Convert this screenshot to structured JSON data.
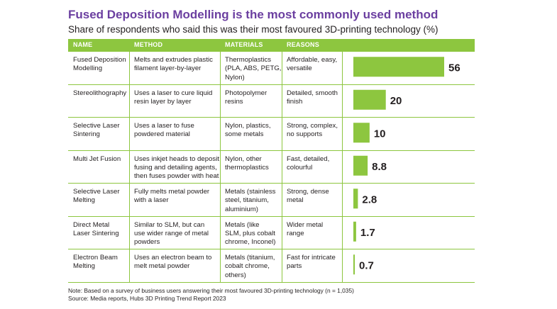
{
  "title": "Fused Deposition Modelling is the most commonly used method",
  "subtitle": "Share of respondents who said this was their most favoured 3D-printing technology (%)",
  "headers": [
    "NAME",
    "METHOD",
    "MATERIALS",
    "REASONS"
  ],
  "rows": [
    {
      "name": [
        "Fused Deposition",
        "Modelling"
      ],
      "method": [
        "Melts and extrudes plastic",
        "filament layer-by-layer"
      ],
      "materials": [
        "Thermoplastics",
        "(PLA, ABS, PETG,",
        "Nylon)"
      ],
      "reasons": [
        "Affordable, easy,",
        "versatile"
      ],
      "value_label": "56"
    },
    {
      "name": [
        "Stereolithography"
      ],
      "method": [
        "Uses a laser to cure liquid",
        "resin layer by layer"
      ],
      "materials": [
        "Photopolymer",
        "resins"
      ],
      "reasons": [
        "Detailed, smooth",
        "finish"
      ],
      "value_label": "20"
    },
    {
      "name": [
        "Selective Laser",
        "Sintering"
      ],
      "method": [
        "Uses a laser to fuse",
        "powdered material"
      ],
      "materials": [
        "Nylon, plastics,",
        "some metals"
      ],
      "reasons": [
        "Strong, complex,",
        "no supports"
      ],
      "value_label": "10"
    },
    {
      "name": [
        "Multi Jet Fusion"
      ],
      "method": [
        "Uses inkjet heads to deposit",
        "fusing and detailing agents,",
        "then fuses powder with heat"
      ],
      "materials": [
        "Nylon, other",
        "thermoplastics"
      ],
      "reasons": [
        "Fast, detailed,",
        "colourful"
      ],
      "value_label": "8.8"
    },
    {
      "name": [
        "Selective Laser",
        "Melting"
      ],
      "method": [
        "Fully melts metal powder",
        "with a laser"
      ],
      "materials": [
        "Metals (stainless",
        "steel, titanium,",
        "aluminium)"
      ],
      "reasons": [
        "Strong, dense",
        "metal"
      ],
      "value_label": "2.8"
    },
    {
      "name": [
        "Direct Metal",
        "Laser Sintering"
      ],
      "method": [
        "Similar to SLM, but can",
        "use wider range of metal",
        "powders"
      ],
      "materials": [
        "Metals (like",
        "SLM, plus cobalt",
        "chrome, Inconel)"
      ],
      "reasons": [
        "Wider metal",
        "range"
      ],
      "value_label": "1.7"
    },
    {
      "name": [
        "Electron Beam",
        "Melting"
      ],
      "method": [
        "Uses an electron beam to",
        "melt metal powder"
      ],
      "materials": [
        "Metals (titanium,",
        "cobalt chrome,",
        "others)"
      ],
      "reasons": [
        "Fast for intricate",
        "parts"
      ],
      "value_label": "0.7"
    }
  ],
  "notes": [
    "Note: Based on a survey of business users answering their most favoured 3D-printing technology (n = 1,035)",
    "Source: Media reports, Hubs 3D Printing Trend Report 2023"
  ],
  "colors": {
    "accent": "#8dc63f",
    "title": "#6b3fa0",
    "text": "#231f20"
  },
  "chart_data": {
    "type": "bar",
    "orientation": "horizontal",
    "categories": [
      "Fused Deposition Modelling",
      "Stereolithography",
      "Selective Laser Sintering",
      "Multi Jet Fusion",
      "Selective Laser Melting",
      "Direct Metal Laser Sintering",
      "Electron Beam Melting"
    ],
    "values": [
      56,
      20,
      10,
      8.8,
      2.8,
      1.7,
      0.7
    ],
    "title": "Fused Deposition Modelling is the most commonly used method",
    "subtitle": "Share of respondents who said this was their most favoured 3D-printing technology (%)",
    "xlabel": "",
    "ylabel": "",
    "xlim": [
      0,
      56
    ],
    "grid": false,
    "legend": "none"
  }
}
